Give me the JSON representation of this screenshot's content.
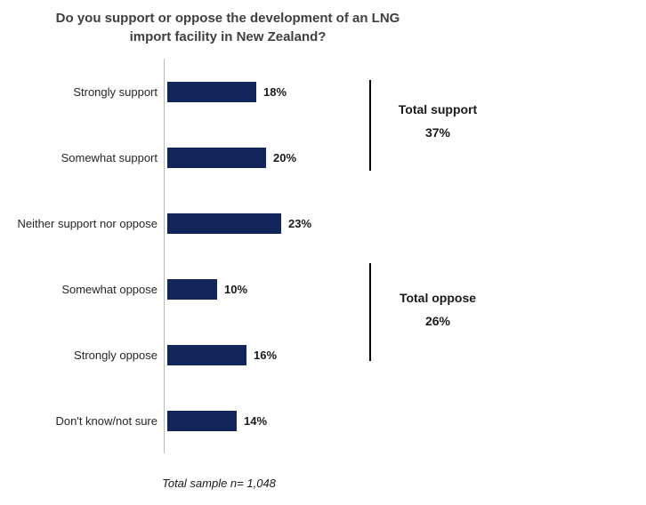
{
  "title": "Do you support or oppose the development of an LNG\nimport facility in New Zealand?",
  "chart_data": {
    "type": "bar",
    "orientation": "horizontal",
    "title": "Do you support or oppose the development of an LNG import facility in New Zealand?",
    "categories": [
      "Strongly support",
      "Somewhat support",
      "Neither support nor oppose",
      "Somewhat oppose",
      "Strongly oppose",
      "Don't know/not sure"
    ],
    "values": [
      18,
      20,
      23,
      10,
      16,
      14
    ],
    "value_labels": [
      "18%",
      "20%",
      "23%",
      "10%",
      "16%",
      "14%"
    ],
    "bar_color": "#13265c",
    "xlim": [
      0,
      25
    ],
    "grid": false,
    "legend": "none",
    "annotations": [
      {
        "label": "Total support",
        "value": "37%",
        "span_categories": [
          "Strongly support",
          "Somewhat support"
        ]
      },
      {
        "label": "Total oppose",
        "value": "26%",
        "span_categories": [
          "Somewhat oppose",
          "Strongly oppose"
        ]
      }
    ],
    "footnote": "Total sample n= 1,048"
  }
}
